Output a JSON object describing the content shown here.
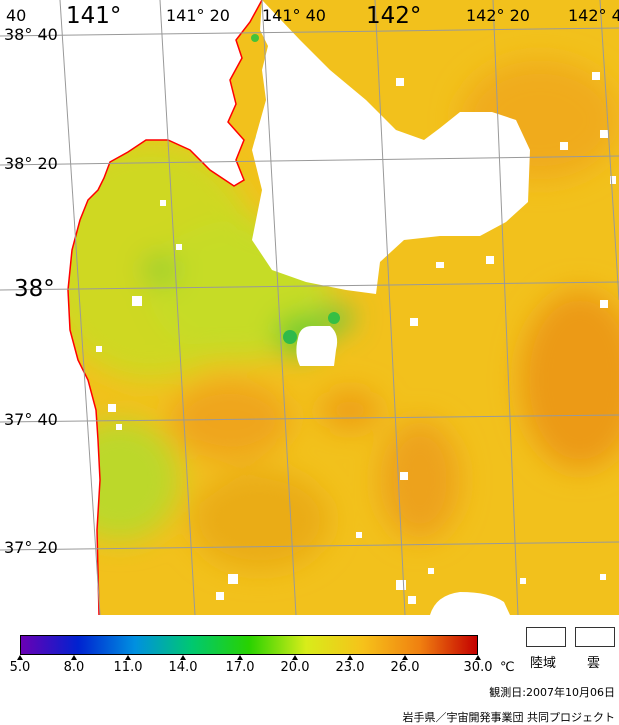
{
  "map": {
    "lon_labels": [
      {
        "text": "40",
        "big": false
      },
      {
        "text": "141°",
        "big": true
      },
      {
        "text": "141° 20",
        "big": false
      },
      {
        "text": "141° 40",
        "big": false
      },
      {
        "text": "142°",
        "big": true
      },
      {
        "text": "142° 20",
        "big": false
      },
      {
        "text": "142° 4",
        "big": false
      }
    ],
    "lat_labels": [
      {
        "text": "38° 40",
        "big": false
      },
      {
        "text": "38° 20",
        "big": false
      },
      {
        "text": "38°",
        "big": true
      },
      {
        "text": "37° 40",
        "big": false
      },
      {
        "text": "37° 20",
        "big": false
      }
    ],
    "colors": {
      "coastline": "#ff0000",
      "grid": "#999999",
      "land_cloud": "#ffffff",
      "sst_base": "#f2c21c"
    }
  },
  "legend": {
    "ticks": [
      "5.0",
      "8.0",
      "11.0",
      "14.0",
      "17.0",
      "20.0",
      "23.0",
      "26.0",
      "30.0"
    ],
    "unit": "℃",
    "land_label": "陸域",
    "cloud_label": "雲",
    "colors": [
      "#6a00b4",
      "#0022d0",
      "#0090e0",
      "#00c870",
      "#28d200",
      "#d8ec1a",
      "#f6c21a",
      "#f08010",
      "#c40000"
    ]
  },
  "observation": "観測日:2007年10月06日",
  "credit": "岩手県／宇宙開発事業団 共同プロジェクト"
}
